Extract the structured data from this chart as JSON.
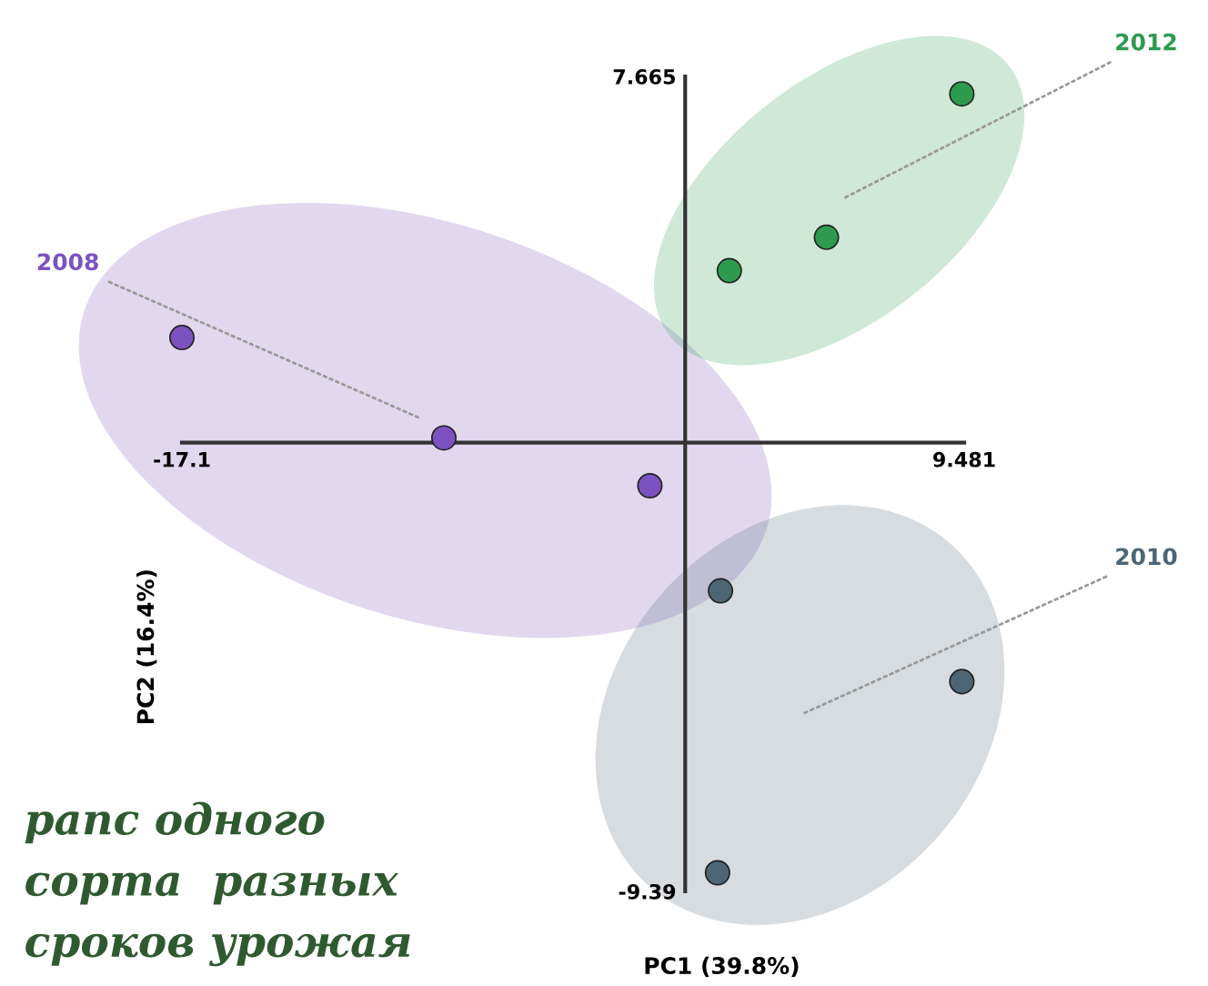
{
  "chart_data": {
    "type": "scatter",
    "xlabel": "PC1 (39.8%)",
    "ylabel": "PC2 (16.4%)",
    "xlim": [
      -17.1,
      9.481
    ],
    "ylim": [
      -9.39,
      7.665
    ],
    "xticks": [
      -17.1,
      9.481
    ],
    "yticks": [
      -9.39,
      7.665
    ],
    "grid": false,
    "legend": false,
    "marker": "circle",
    "series": [
      {
        "name": "2008",
        "color": "#7b52c0",
        "x": [
          -17.1,
          -8.2,
          -1.2
        ],
        "values": [
          2.2,
          0.1,
          -0.9
        ]
      },
      {
        "name": "2012",
        "color": "#2e9a4e",
        "x": [
          9.4,
          4.8,
          1.5
        ],
        "values": [
          7.3,
          4.3,
          3.6
        ]
      },
      {
        "name": "2010",
        "color": "#4c6675",
        "x": [
          1.2,
          9.4,
          1.1
        ],
        "values": [
          -3.1,
          -5.0,
          -9.0
        ]
      }
    ],
    "annotations": [
      "рапс одного\nсорта  разных\nсроков урожая"
    ]
  }
}
